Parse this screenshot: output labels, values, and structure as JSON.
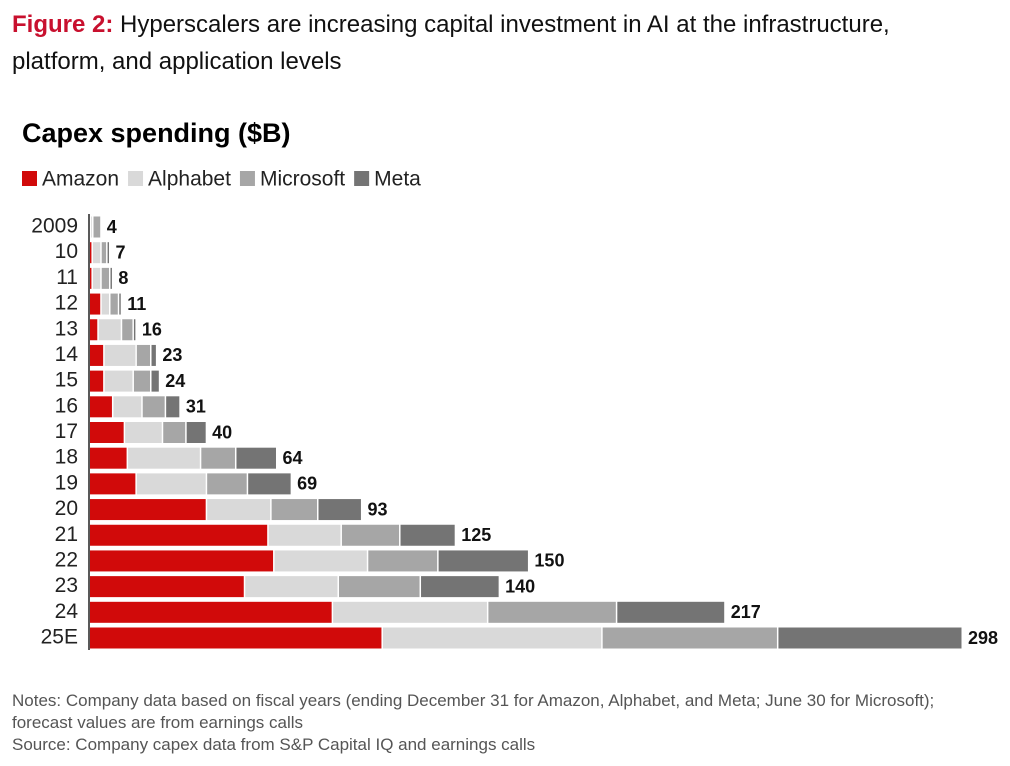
{
  "chart_data": {
    "type": "stacked-bar-horizontal",
    "figure_label": "Figure 2:",
    "title": "Hyperscalers are increasing capital investment in AI at the infrastructure, platform, and application levels",
    "subtitle": "Capex spending ($B)",
    "categories": [
      "2009",
      "10",
      "11",
      "12",
      "13",
      "14",
      "15",
      "16",
      "17",
      "18",
      "19",
      "20",
      "21",
      "22",
      "23",
      "24",
      "25E"
    ],
    "series": [
      {
        "name": "Amazon",
        "color": "#d10a0a",
        "values": [
          0.4,
          1,
          1,
          4,
          3,
          5,
          5,
          8,
          12,
          13,
          16,
          40,
          61,
          63,
          53,
          83,
          100
        ]
      },
      {
        "name": "Alphabet",
        "color": "#d9d9d9",
        "values": [
          0.8,
          3,
          3,
          3,
          8,
          11,
          10,
          10,
          13,
          25,
          24,
          22,
          25,
          32,
          32,
          53,
          75
        ]
      },
      {
        "name": "Microsoft",
        "color": "#a6a6a6",
        "values": [
          2.8,
          2,
          3,
          3,
          4,
          5,
          6,
          8,
          8,
          12,
          14,
          16,
          20,
          24,
          28,
          44,
          60
        ]
      },
      {
        "name": "Meta",
        "color": "#747474",
        "values": [
          0,
          1,
          1,
          1,
          1,
          2,
          3,
          5,
          7,
          14,
          15,
          15,
          19,
          31,
          27,
          37,
          63
        ]
      }
    ],
    "totals": [
      4,
      7,
      8,
      11,
      16,
      23,
      24,
      31,
      40,
      64,
      69,
      93,
      125,
      150,
      140,
      217,
      298
    ],
    "legend": "top-left",
    "notes": "Notes: Company data based on fiscal years (ending December 31 for Amazon, Alphabet, and Meta; June 30 for Microsoft); forecast values are from earnings calls",
    "source": "Source: Company capex data from S&P Capital IQ and earnings calls"
  }
}
